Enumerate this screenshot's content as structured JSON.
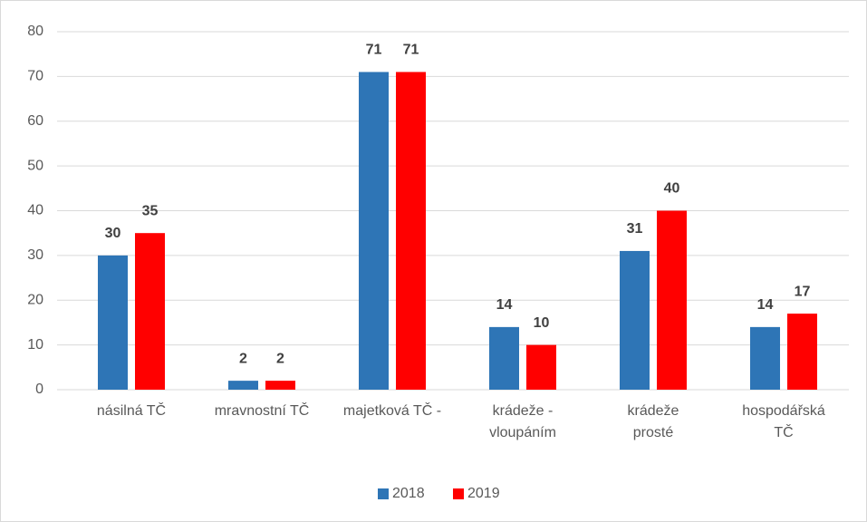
{
  "chart_data": {
    "type": "bar",
    "categories": [
      "násilná TČ",
      "mravnostní TČ",
      "majetková TČ -",
      "krádeže -\nvloupáním",
      "krádeže\nprosté",
      "hospodářská\nTČ"
    ],
    "series": [
      {
        "name": "2018",
        "color": "#2e75b6",
        "values": [
          30,
          2,
          71,
          14,
          31,
          14
        ]
      },
      {
        "name": "2019",
        "color": "#ff0000",
        "values": [
          35,
          2,
          71,
          10,
          40,
          17
        ]
      }
    ],
    "ylim": [
      0,
      80
    ],
    "yticks": [
      0,
      10,
      20,
      30,
      40,
      50,
      60,
      70,
      80
    ],
    "grid": true,
    "legend": "bottom"
  }
}
